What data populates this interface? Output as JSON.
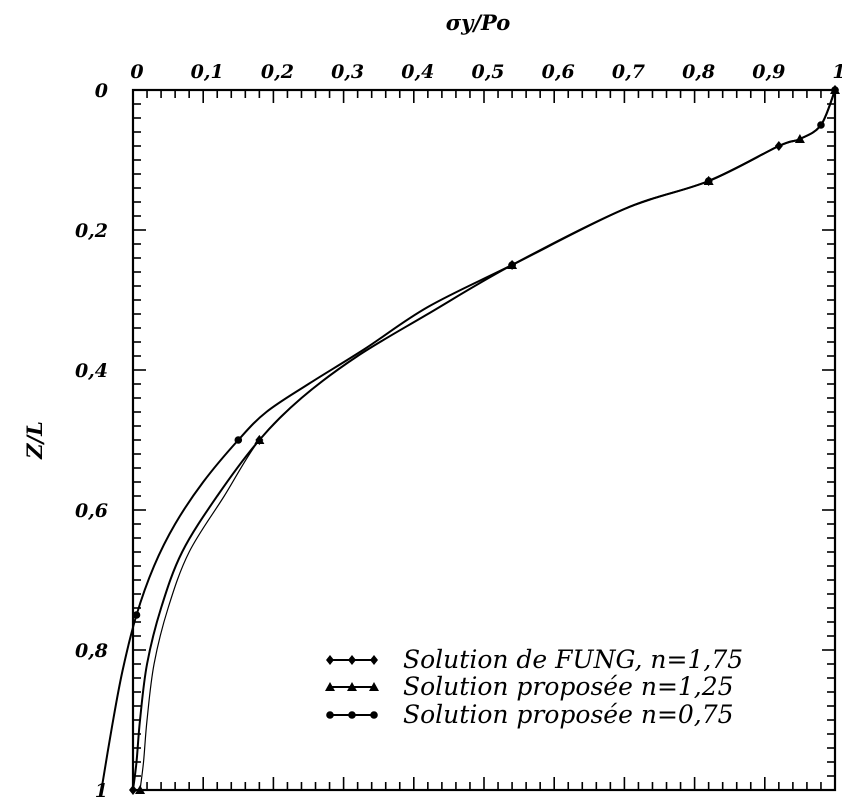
{
  "chart_data": {
    "type": "line",
    "title": "",
    "xlabel": "σy/Po",
    "ylabel": "Z/L",
    "xlim": [
      0,
      1
    ],
    "ylim": [
      0,
      1
    ],
    "y_inverted": true,
    "x_axis_position": "top",
    "x_ticks": [
      0,
      0.1,
      0.2,
      0.3,
      0.4,
      0.5,
      0.6,
      0.7,
      0.8,
      0.9,
      1
    ],
    "x_tick_labels": [
      "0",
      "0,1",
      "0,2",
      "0,3",
      "0,4",
      "0,5",
      "0,6",
      "0,7",
      "0,8",
      "0,9",
      "1"
    ],
    "y_ticks": [
      0,
      0.2,
      0.4,
      0.6,
      0.8,
      1
    ],
    "y_tick_labels": [
      "0",
      "0,2",
      "0,4",
      "0,6",
      "0,8",
      "1"
    ],
    "grid": false,
    "legend_position": "bottom-right",
    "series": [
      {
        "name": "Solution de FUNG, n=1,75",
        "marker": "diamond",
        "points": [
          [
            1,
            0
          ],
          [
            0.98,
            0.05
          ],
          [
            0.95,
            0.07
          ],
          [
            0.92,
            0.08
          ],
          [
            0.82,
            0.13
          ],
          [
            0.7,
            0.17
          ],
          [
            0.54,
            0.25
          ],
          [
            0.42,
            0.32
          ],
          [
            0.32,
            0.38
          ],
          [
            0.24,
            0.44
          ],
          [
            0.18,
            0.5
          ],
          [
            0.12,
            0.58
          ],
          [
            0.07,
            0.66
          ],
          [
            0.04,
            0.74
          ],
          [
            0.02,
            0.82
          ],
          [
            0.01,
            0.9
          ],
          [
            0.005,
            0.96
          ],
          [
            0,
            1
          ]
        ],
        "markers_at": [
          [
            1,
            0
          ],
          [
            0.92,
            0.08
          ],
          [
            0.82,
            0.13
          ],
          [
            0.54,
            0.25
          ],
          [
            0.18,
            0.5
          ],
          [
            0,
            1
          ]
        ]
      },
      {
        "name": "Solution proposée n=1,25",
        "marker": "triangle",
        "points": [
          [
            1,
            0
          ],
          [
            0.98,
            0.05
          ],
          [
            0.95,
            0.07
          ],
          [
            0.92,
            0.08
          ],
          [
            0.82,
            0.13
          ],
          [
            0.7,
            0.17
          ],
          [
            0.54,
            0.25
          ],
          [
            0.42,
            0.32
          ],
          [
            0.32,
            0.38
          ],
          [
            0.24,
            0.44
          ],
          [
            0.18,
            0.5
          ],
          [
            0.13,
            0.58
          ],
          [
            0.08,
            0.66
          ],
          [
            0.05,
            0.74
          ],
          [
            0.03,
            0.82
          ],
          [
            0.02,
            0.9
          ],
          [
            0.015,
            0.96
          ],
          [
            0.01,
            1
          ]
        ],
        "markers_at": [
          [
            1,
            0
          ],
          [
            0.95,
            0.07
          ],
          [
            0.82,
            0.13
          ],
          [
            0.54,
            0.25
          ],
          [
            0.18,
            0.5
          ],
          [
            0.01,
            1
          ]
        ]
      },
      {
        "name": "Solution proposée n=0,75",
        "marker": "circle",
        "points": [
          [
            1,
            0
          ],
          [
            0.98,
            0.05
          ],
          [
            0.95,
            0.07
          ],
          [
            0.92,
            0.08
          ],
          [
            0.82,
            0.13
          ],
          [
            0.7,
            0.17
          ],
          [
            0.54,
            0.25
          ],
          [
            0.42,
            0.31
          ],
          [
            0.33,
            0.37
          ],
          [
            0.25,
            0.42
          ],
          [
            0.19,
            0.46
          ],
          [
            0.15,
            0.5
          ],
          [
            0.1,
            0.56
          ],
          [
            0.06,
            0.62
          ],
          [
            0.03,
            0.68
          ],
          [
            0.005,
            0.75
          ],
          [
            -0.015,
            0.83
          ],
          [
            -0.03,
            0.91
          ],
          [
            -0.045,
            1
          ]
        ],
        "markers_at": [
          [
            1,
            0
          ],
          [
            0.98,
            0.05
          ],
          [
            0.82,
            0.13
          ],
          [
            0.54,
            0.25
          ],
          [
            0.15,
            0.5
          ],
          [
            0.005,
            0.75
          ]
        ]
      }
    ]
  }
}
